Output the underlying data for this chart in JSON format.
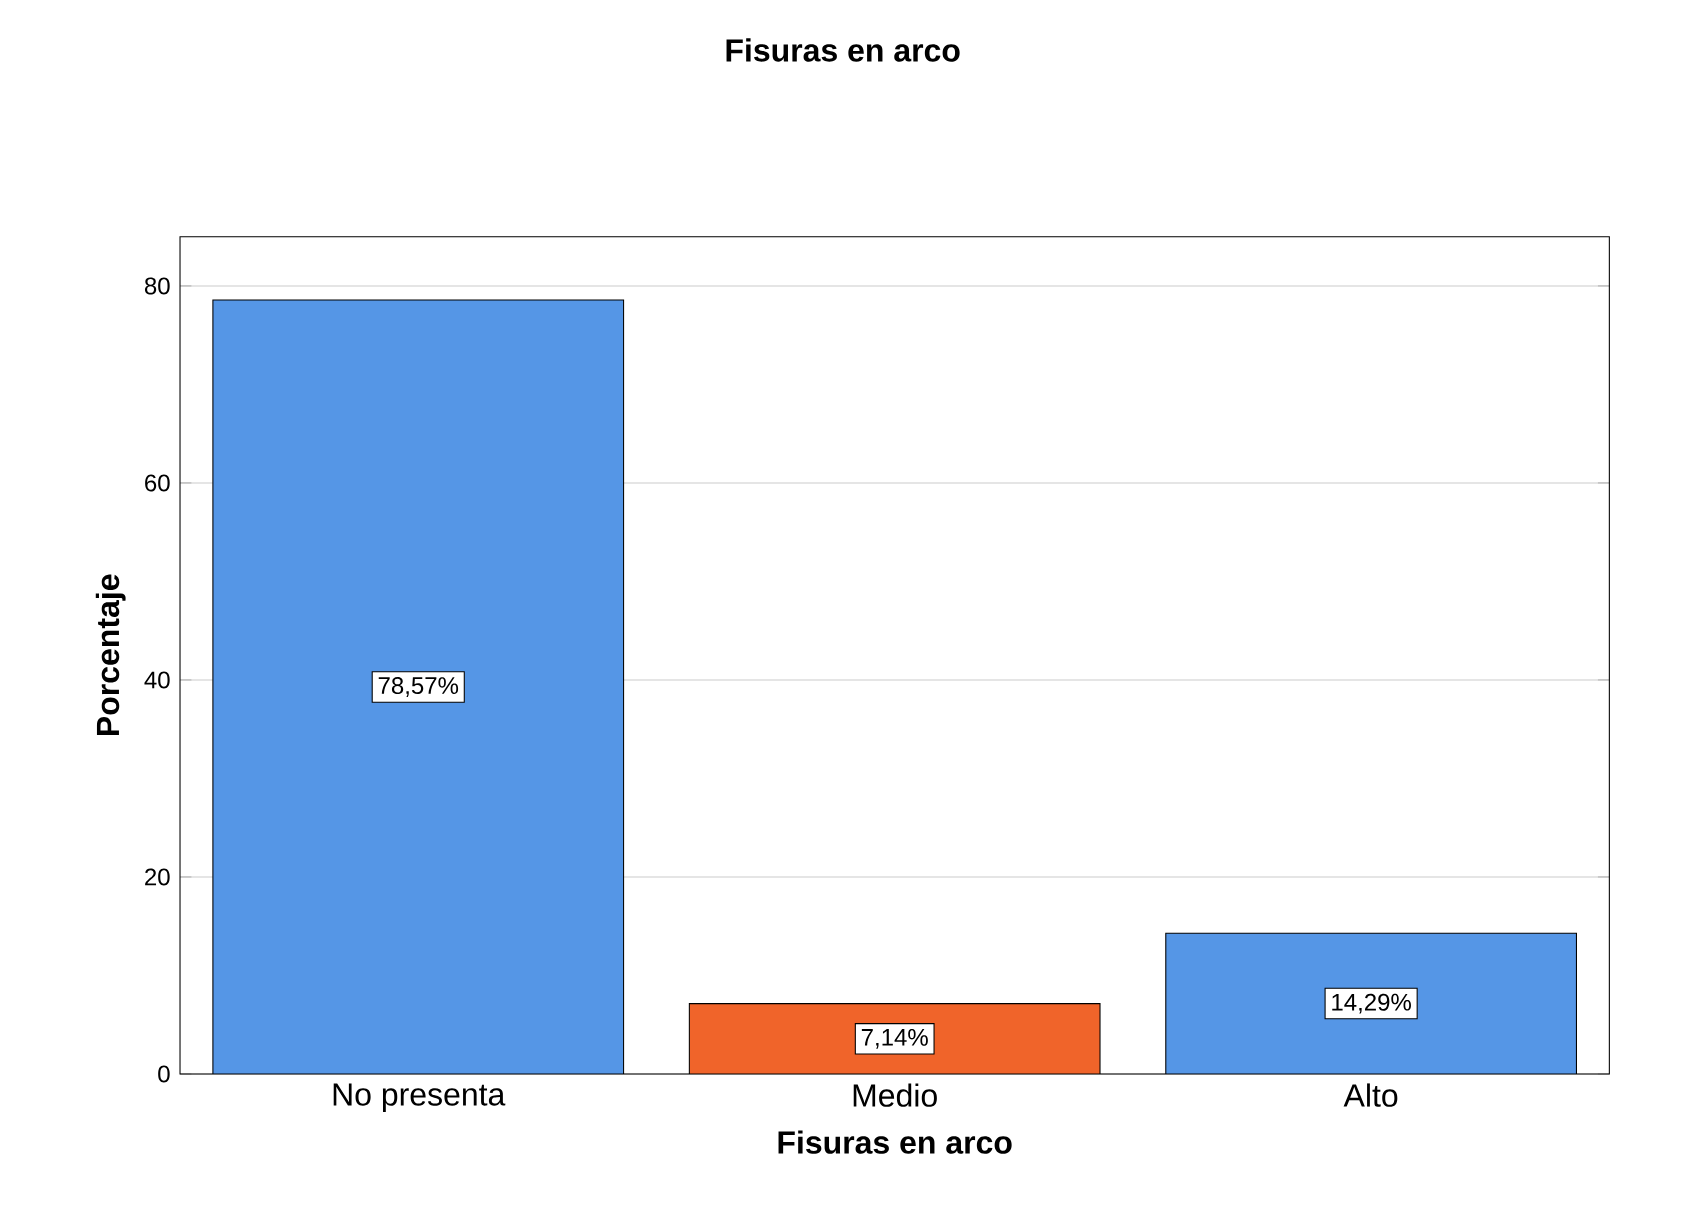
{
  "chart_data": {
    "type": "bar",
    "title": "Fisuras en arco",
    "xlabel": "Fisuras en arco",
    "ylabel": "Porcentaje",
    "categories": [
      "No presenta",
      "Medio",
      "Alto"
    ],
    "values": [
      78.57,
      7.14,
      14.29
    ],
    "colors": [
      "#5596e6",
      "#f0642a",
      "#5596e6"
    ],
    "value_labels": [
      "78,57%",
      "7,14%",
      "14,29%"
    ],
    "ylim": [
      0,
      85
    ],
    "yticks": [
      0,
      20,
      40,
      60,
      80
    ],
    "grid": "y"
  }
}
